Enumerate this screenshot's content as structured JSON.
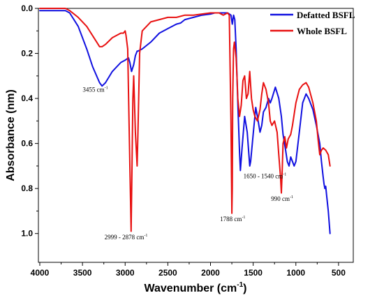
{
  "chart_data": {
    "type": "line",
    "xlabel": "Wavenumber (cm",
    "xlabel_sup": "-1",
    "xlabel_close": ")",
    "ylabel": "Absorbance (nm)",
    "xlim": [
      4000,
      450
    ],
    "ylim": [
      1.1,
      0
    ],
    "x_reversed": true,
    "y_reversed": true,
    "grid": false,
    "legend_position": "top-right",
    "xticks": [
      4000,
      3500,
      3000,
      2500,
      2000,
      1500,
      1000,
      500
    ],
    "yticks": [
      0.0,
      0.2,
      0.4,
      0.6,
      0.8,
      1.0
    ],
    "xtick_labels": [
      "4000",
      "3500",
      "3000",
      "2500",
      "2000",
      "1500",
      "1000",
      "500"
    ],
    "ytick_labels": [
      "0.0",
      "0.2",
      "0.4",
      "0.6",
      "0.8",
      "1.0"
    ],
    "series": [
      {
        "name": "Defatted  BSFL",
        "color": "#1010e0",
        "x": [
          4000,
          3800,
          3700,
          3650,
          3550,
          3450,
          3380,
          3300,
          3270,
          3230,
          3150,
          3050,
          3000,
          2960,
          2945,
          2925,
          2900,
          2880,
          2860,
          2850,
          2800,
          2700,
          2600,
          2500,
          2400,
          2350,
          2300,
          2200,
          2100,
          2000,
          1950,
          1900,
          1850,
          1800,
          1760,
          1745,
          1730,
          1715,
          1700,
          1680,
          1660,
          1650,
          1630,
          1600,
          1570,
          1540,
          1530,
          1500,
          1470,
          1450,
          1420,
          1400,
          1380,
          1350,
          1320,
          1300,
          1280,
          1240,
          1200,
          1170,
          1150,
          1120,
          1100,
          1080,
          1060,
          1040,
          1020,
          1000,
          960,
          920,
          880,
          850,
          800,
          760,
          720,
          700,
          680,
          670,
          660,
          650,
          640,
          620,
          600
        ],
        "values": [
          0.01,
          0.01,
          0.01,
          0.02,
          0.08,
          0.18,
          0.26,
          0.33,
          0.345,
          0.33,
          0.28,
          0.24,
          0.23,
          0.22,
          0.24,
          0.28,
          0.25,
          0.21,
          0.19,
          0.19,
          0.18,
          0.15,
          0.11,
          0.09,
          0.07,
          0.065,
          0.05,
          0.04,
          0.03,
          0.025,
          0.02,
          0.02,
          0.02,
          0.02,
          0.03,
          0.07,
          0.03,
          0.05,
          0.18,
          0.42,
          0.64,
          0.72,
          0.62,
          0.48,
          0.55,
          0.7,
          0.68,
          0.56,
          0.44,
          0.48,
          0.55,
          0.52,
          0.46,
          0.44,
          0.4,
          0.42,
          0.4,
          0.35,
          0.4,
          0.48,
          0.56,
          0.63,
          0.68,
          0.7,
          0.66,
          0.68,
          0.7,
          0.68,
          0.55,
          0.42,
          0.38,
          0.4,
          0.45,
          0.52,
          0.6,
          0.68,
          0.75,
          0.78,
          0.8,
          0.79,
          0.83,
          0.9,
          1.0
        ]
      },
      {
        "name": "Whole BSFL",
        "color": "#e81010",
        "x": [
          4000,
          3700,
          3650,
          3550,
          3450,
          3350,
          3300,
          3270,
          3230,
          3150,
          3050,
          3020,
          3000,
          2990,
          2970,
          2950,
          2930,
          2920,
          2910,
          2900,
          2880,
          2860,
          2850,
          2830,
          2800,
          2700,
          2600,
          2500,
          2400,
          2300,
          2200,
          2100,
          2000,
          1900,
          1850,
          1800,
          1780,
          1760,
          1750,
          1745,
          1740,
          1730,
          1720,
          1700,
          1690,
          1680,
          1660,
          1640,
          1620,
          1600,
          1580,
          1560,
          1540,
          1520,
          1500,
          1480,
          1450,
          1420,
          1400,
          1380,
          1350,
          1320,
          1300,
          1280,
          1250,
          1220,
          1200,
          1180,
          1170,
          1160,
          1150,
          1130,
          1110,
          1090,
          1060,
          1040,
          1000,
          960,
          920,
          880,
          850,
          800,
          760,
          740,
          720,
          700,
          680,
          650,
          620,
          600
        ],
        "values": [
          0.0,
          0.0,
          0.01,
          0.04,
          0.08,
          0.14,
          0.17,
          0.17,
          0.16,
          0.13,
          0.11,
          0.11,
          0.1,
          0.12,
          0.18,
          0.6,
          0.99,
          0.72,
          0.4,
          0.3,
          0.55,
          0.7,
          0.55,
          0.2,
          0.1,
          0.06,
          0.05,
          0.04,
          0.04,
          0.03,
          0.03,
          0.025,
          0.02,
          0.02,
          0.03,
          0.02,
          0.03,
          0.5,
          0.91,
          0.8,
          0.4,
          0.18,
          0.15,
          0.22,
          0.3,
          0.4,
          0.48,
          0.43,
          0.32,
          0.3,
          0.4,
          0.38,
          0.28,
          0.4,
          0.45,
          0.48,
          0.5,
          0.45,
          0.38,
          0.33,
          0.36,
          0.42,
          0.5,
          0.52,
          0.5,
          0.55,
          0.65,
          0.75,
          0.82,
          0.72,
          0.6,
          0.57,
          0.62,
          0.58,
          0.56,
          0.52,
          0.42,
          0.36,
          0.34,
          0.33,
          0.35,
          0.42,
          0.5,
          0.58,
          0.65,
          0.63,
          0.62,
          0.63,
          0.65,
          0.7
        ]
      }
    ],
    "annotations": [
      {
        "text": "3455 cm",
        "sup": "-1",
        "x": 3350,
        "y": 0.37,
        "anchor": "middle"
      },
      {
        "text": "2999 - 2878 cm",
        "sup": "-1",
        "x": 2990,
        "y": 1.025,
        "anchor": "middle"
      },
      {
        "text": "1788 cm",
        "sup": "-1",
        "x": 1740,
        "y": 0.945,
        "anchor": "middle"
      },
      {
        "text": "1650 - 1540 cm",
        "sup": "-1",
        "x": 1615,
        "y": 0.755,
        "anchor": "start"
      },
      {
        "text": "990 cm",
        "sup": "-1",
        "x": 1290,
        "y": 0.855,
        "anchor": "start"
      }
    ]
  }
}
